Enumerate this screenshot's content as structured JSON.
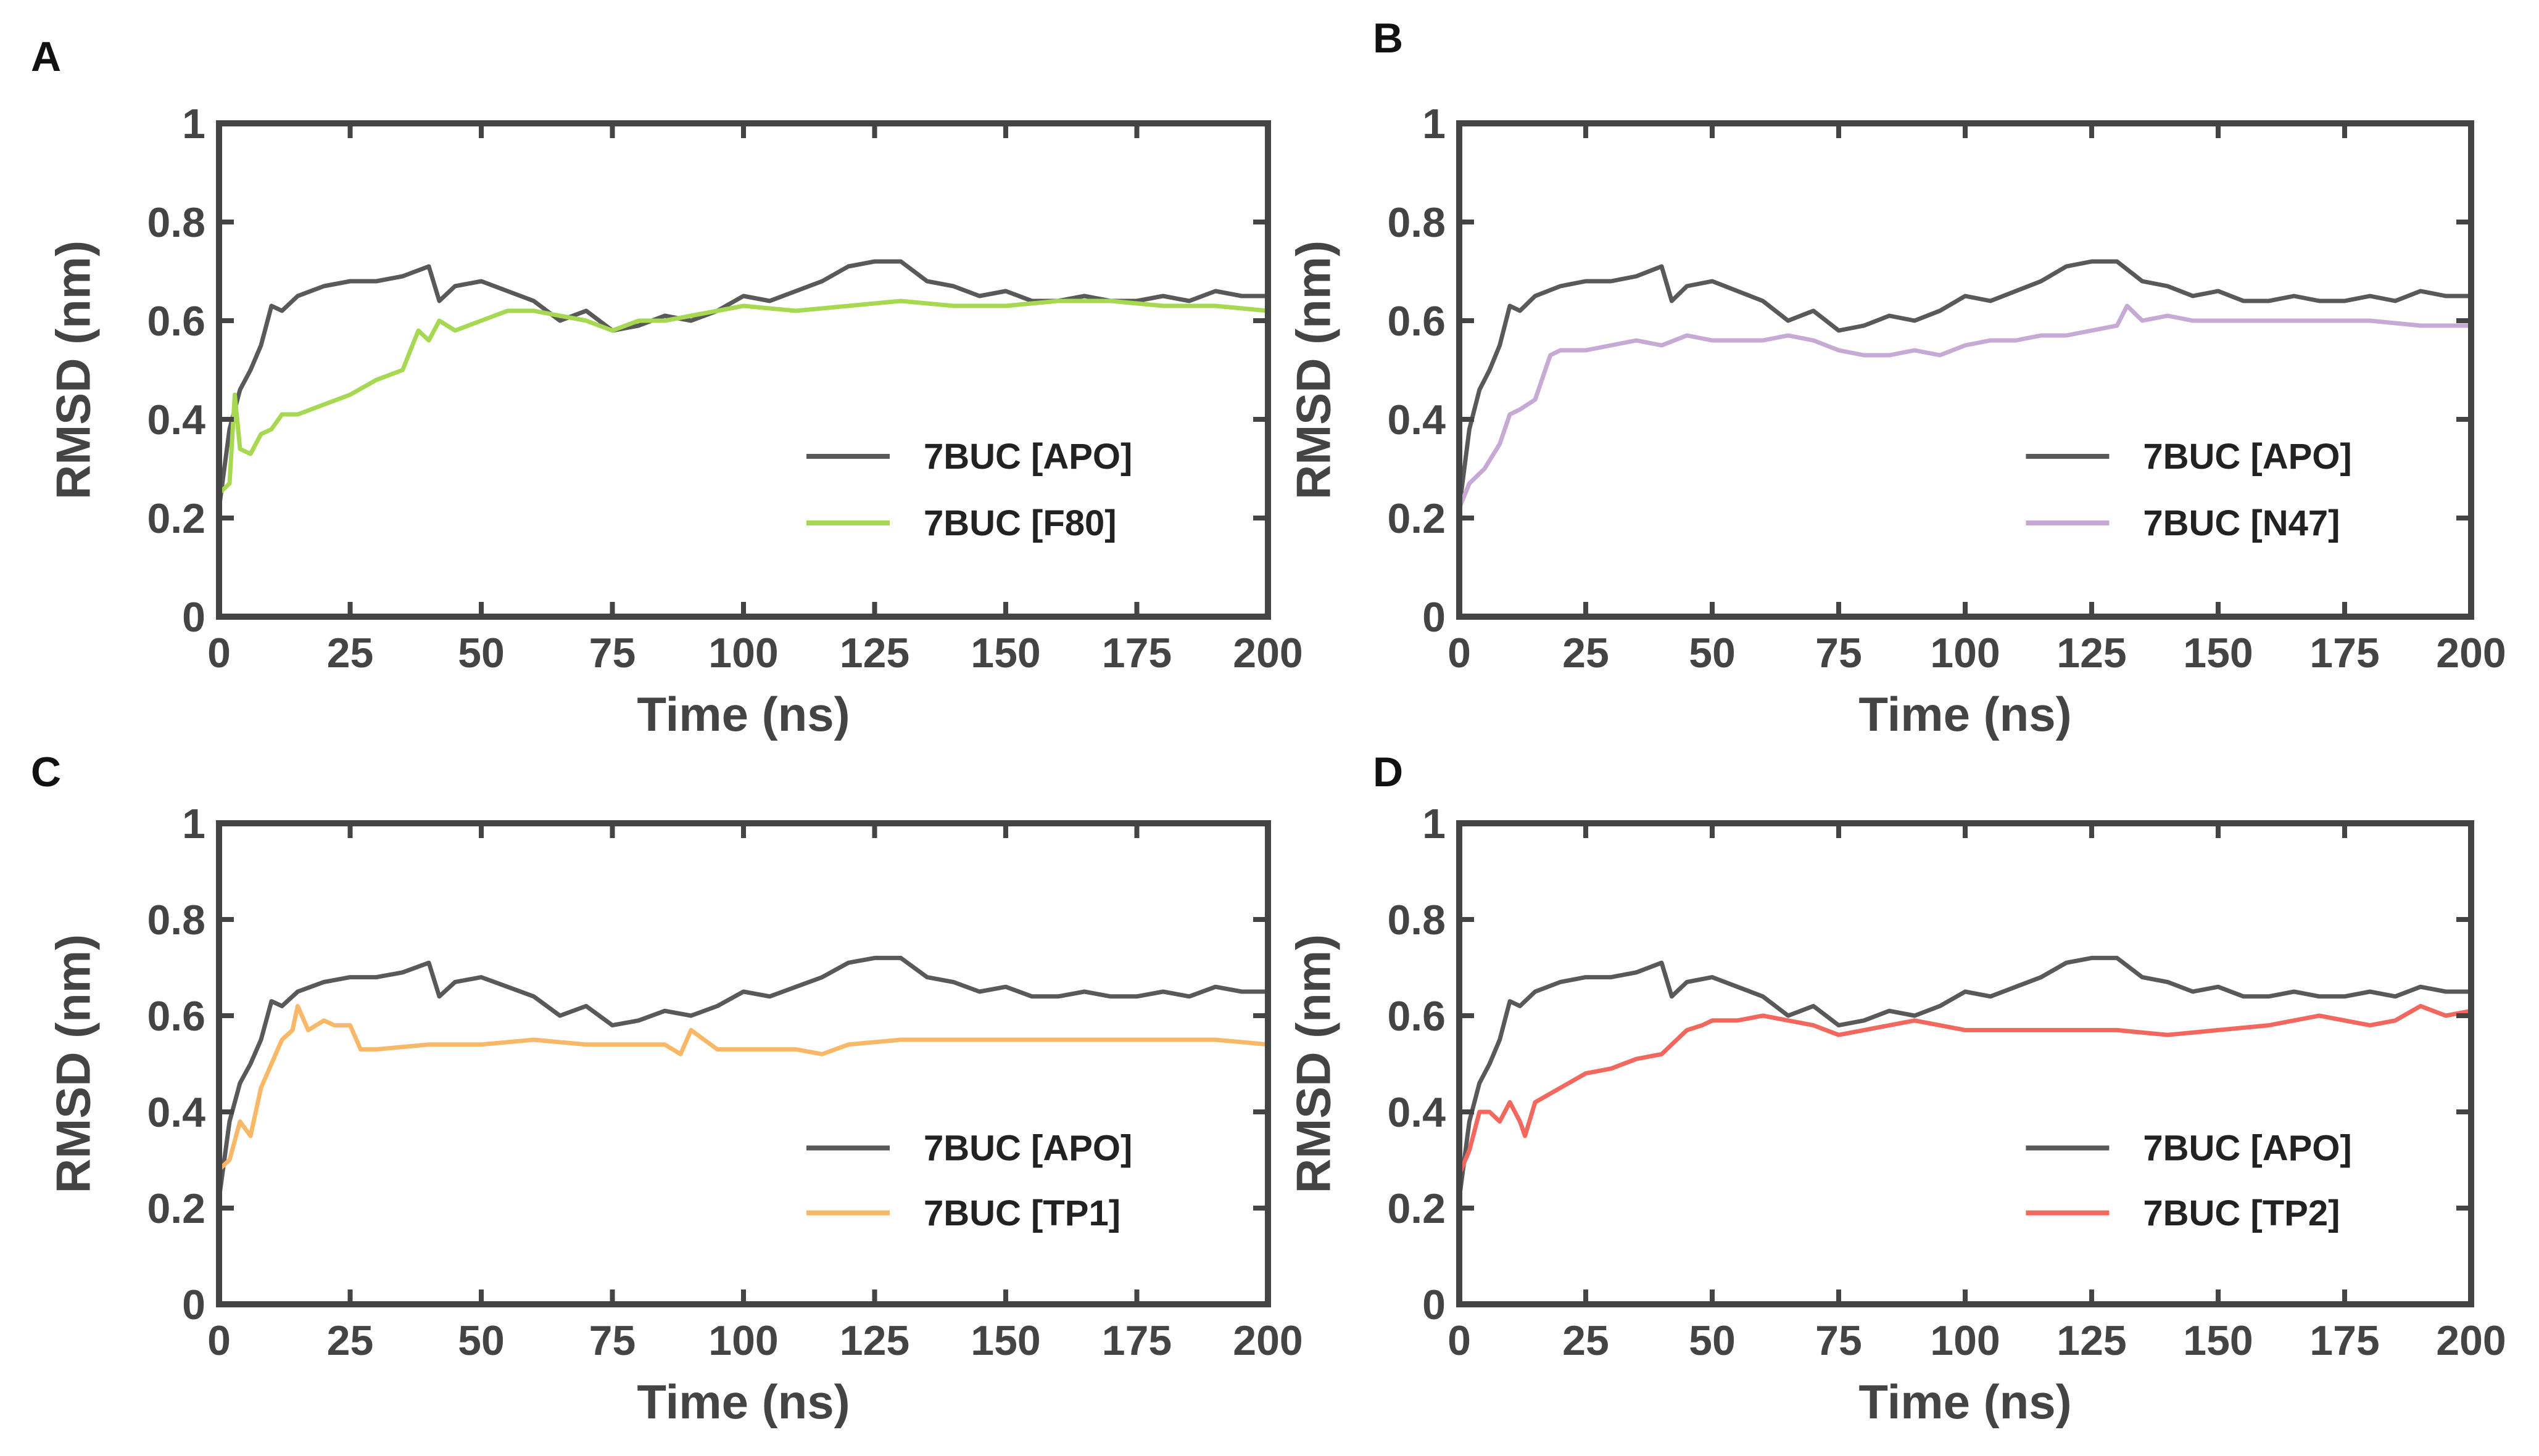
{
  "chart_data": [
    {
      "panel": "A",
      "type": "line",
      "title": "",
      "xlabel": "Time (ns)",
      "ylabel": "RMSD (nm)",
      "xlim": [
        0,
        200
      ],
      "ylim": [
        0,
        1
      ],
      "xticks": [
        0,
        25,
        50,
        75,
        100,
        125,
        150,
        175,
        200
      ],
      "yticks": [
        0,
        0.2,
        0.4,
        0.6,
        0.8,
        1
      ],
      "ytick_labels": [
        "0",
        "0.2",
        "0.4",
        "0.6",
        "0.8",
        "1"
      ],
      "legend_position": "bottom-right",
      "series": [
        {
          "name": "7BUC [APO]",
          "color": "#595959",
          "x": [
            0,
            2,
            4,
            6,
            8,
            10,
            12,
            15,
            20,
            25,
            30,
            35,
            40,
            42,
            45,
            50,
            55,
            60,
            65,
            70,
            75,
            80,
            85,
            90,
            95,
            100,
            105,
            110,
            115,
            120,
            125,
            130,
            135,
            140,
            145,
            150,
            155,
            160,
            165,
            170,
            175,
            180,
            185,
            190,
            195,
            200
          ],
          "y": [
            0.22,
            0.38,
            0.46,
            0.5,
            0.55,
            0.63,
            0.62,
            0.65,
            0.67,
            0.68,
            0.68,
            0.69,
            0.71,
            0.64,
            0.67,
            0.68,
            0.66,
            0.64,
            0.6,
            0.62,
            0.58,
            0.59,
            0.61,
            0.6,
            0.62,
            0.65,
            0.64,
            0.66,
            0.68,
            0.71,
            0.72,
            0.72,
            0.68,
            0.67,
            0.65,
            0.66,
            0.64,
            0.64,
            0.65,
            0.64,
            0.64,
            0.65,
            0.64,
            0.66,
            0.65,
            0.65
          ]
        },
        {
          "name": "7BUC [F80]",
          "color": "#a6d852",
          "x": [
            0,
            2,
            3,
            4,
            6,
            8,
            10,
            12,
            15,
            20,
            25,
            30,
            35,
            38,
            40,
            42,
            45,
            50,
            55,
            60,
            65,
            70,
            75,
            80,
            85,
            90,
            95,
            100,
            110,
            120,
            130,
            140,
            150,
            160,
            170,
            180,
            190,
            200
          ],
          "y": [
            0.25,
            0.27,
            0.45,
            0.34,
            0.33,
            0.37,
            0.38,
            0.41,
            0.41,
            0.43,
            0.45,
            0.48,
            0.5,
            0.58,
            0.56,
            0.6,
            0.58,
            0.6,
            0.62,
            0.62,
            0.61,
            0.6,
            0.58,
            0.6,
            0.6,
            0.61,
            0.62,
            0.63,
            0.62,
            0.63,
            0.64,
            0.63,
            0.63,
            0.64,
            0.64,
            0.63,
            0.63,
            0.62
          ]
        }
      ]
    },
    {
      "panel": "B",
      "type": "line",
      "title": "",
      "xlabel": "Time (ns)",
      "ylabel": "RMSD (nm)",
      "xlim": [
        0,
        200
      ],
      "ylim": [
        0,
        1
      ],
      "xticks": [
        0,
        25,
        50,
        75,
        100,
        125,
        150,
        175,
        200
      ],
      "yticks": [
        0,
        0.2,
        0.4,
        0.6,
        0.8,
        1
      ],
      "ytick_labels": [
        "0",
        "0.2",
        "0.4",
        "0.6",
        "0.8",
        "1"
      ],
      "legend_position": "bottom-right",
      "series": [
        {
          "name": "7BUC [APO]",
          "color": "#595959",
          "x": [
            0,
            2,
            4,
            6,
            8,
            10,
            12,
            15,
            20,
            25,
            30,
            35,
            40,
            42,
            45,
            50,
            55,
            60,
            65,
            70,
            75,
            80,
            85,
            90,
            95,
            100,
            105,
            110,
            115,
            120,
            125,
            130,
            135,
            140,
            145,
            150,
            155,
            160,
            165,
            170,
            175,
            180,
            185,
            190,
            195,
            200
          ],
          "y": [
            0.22,
            0.38,
            0.46,
            0.5,
            0.55,
            0.63,
            0.62,
            0.65,
            0.67,
            0.68,
            0.68,
            0.69,
            0.71,
            0.64,
            0.67,
            0.68,
            0.66,
            0.64,
            0.6,
            0.62,
            0.58,
            0.59,
            0.61,
            0.6,
            0.62,
            0.65,
            0.64,
            0.66,
            0.68,
            0.71,
            0.72,
            0.72,
            0.68,
            0.67,
            0.65,
            0.66,
            0.64,
            0.64,
            0.65,
            0.64,
            0.64,
            0.65,
            0.64,
            0.66,
            0.65,
            0.65
          ]
        },
        {
          "name": "7BUC [N47]",
          "color": "#c7a9d6",
          "x": [
            0,
            2,
            5,
            8,
            10,
            12,
            15,
            18,
            20,
            25,
            30,
            35,
            40,
            45,
            50,
            55,
            60,
            65,
            70,
            75,
            80,
            85,
            90,
            95,
            100,
            105,
            110,
            115,
            120,
            125,
            130,
            132,
            135,
            140,
            145,
            150,
            160,
            170,
            180,
            190,
            200
          ],
          "y": [
            0.22,
            0.27,
            0.3,
            0.35,
            0.41,
            0.42,
            0.44,
            0.53,
            0.54,
            0.54,
            0.55,
            0.56,
            0.55,
            0.57,
            0.56,
            0.56,
            0.56,
            0.57,
            0.56,
            0.54,
            0.53,
            0.53,
            0.54,
            0.53,
            0.55,
            0.56,
            0.56,
            0.57,
            0.57,
            0.58,
            0.59,
            0.63,
            0.6,
            0.61,
            0.6,
            0.6,
            0.6,
            0.6,
            0.6,
            0.59,
            0.59
          ]
        }
      ]
    },
    {
      "panel": "C",
      "type": "line",
      "title": "",
      "xlabel": "Time (ns)",
      "ylabel": "RMSD (nm)",
      "xlim": [
        0,
        200
      ],
      "ylim": [
        0,
        1
      ],
      "xticks": [
        0,
        25,
        50,
        75,
        100,
        125,
        150,
        175,
        200
      ],
      "yticks": [
        0,
        0.2,
        0.4,
        0.6,
        0.8,
        1
      ],
      "ytick_labels": [
        "0",
        "0.2",
        "0.4",
        "0.6",
        "0.8",
        "1"
      ],
      "legend_position": "bottom-right",
      "series": [
        {
          "name": "7BUC [APO]",
          "color": "#595959",
          "x": [
            0,
            2,
            4,
            6,
            8,
            10,
            12,
            15,
            20,
            25,
            30,
            35,
            40,
            42,
            45,
            50,
            55,
            60,
            65,
            70,
            75,
            80,
            85,
            90,
            95,
            100,
            105,
            110,
            115,
            120,
            125,
            130,
            135,
            140,
            145,
            150,
            155,
            160,
            165,
            170,
            175,
            180,
            185,
            190,
            195,
            200
          ],
          "y": [
            0.22,
            0.38,
            0.46,
            0.5,
            0.55,
            0.63,
            0.62,
            0.65,
            0.67,
            0.68,
            0.68,
            0.69,
            0.71,
            0.64,
            0.67,
            0.68,
            0.66,
            0.64,
            0.6,
            0.62,
            0.58,
            0.59,
            0.61,
            0.6,
            0.62,
            0.65,
            0.64,
            0.66,
            0.68,
            0.71,
            0.72,
            0.72,
            0.68,
            0.67,
            0.65,
            0.66,
            0.64,
            0.64,
            0.65,
            0.64,
            0.64,
            0.65,
            0.64,
            0.66,
            0.65,
            0.65
          ]
        },
        {
          "name": "7BUC [TP1]",
          "color": "#f8b868",
          "x": [
            0,
            2,
            4,
            6,
            8,
            10,
            12,
            14,
            15,
            17,
            20,
            22,
            25,
            27,
            30,
            40,
            50,
            60,
            70,
            80,
            85,
            88,
            90,
            95,
            100,
            110,
            115,
            120,
            130,
            140,
            150,
            160,
            170,
            180,
            190,
            200
          ],
          "y": [
            0.28,
            0.3,
            0.38,
            0.35,
            0.45,
            0.5,
            0.55,
            0.57,
            0.62,
            0.57,
            0.59,
            0.58,
            0.58,
            0.53,
            0.53,
            0.54,
            0.54,
            0.55,
            0.54,
            0.54,
            0.54,
            0.52,
            0.57,
            0.53,
            0.53,
            0.53,
            0.52,
            0.54,
            0.55,
            0.55,
            0.55,
            0.55,
            0.55,
            0.55,
            0.55,
            0.54
          ]
        }
      ]
    },
    {
      "panel": "D",
      "type": "line",
      "title": "",
      "xlabel": "Time (ns)",
      "ylabel": "RMSD (nm)",
      "xlim": [
        0,
        200
      ],
      "ylim": [
        0,
        1
      ],
      "xticks": [
        0,
        25,
        50,
        75,
        100,
        125,
        150,
        175,
        200
      ],
      "yticks": [
        0,
        0.2,
        0.4,
        0.6,
        0.8,
        1
      ],
      "ytick_labels": [
        "0",
        "0.2",
        "0.4",
        "0.6",
        "0.8",
        "1"
      ],
      "legend_position": "bottom-right",
      "series": [
        {
          "name": "7BUC [APO]",
          "color": "#595959",
          "x": [
            0,
            2,
            4,
            6,
            8,
            10,
            12,
            15,
            20,
            25,
            30,
            35,
            40,
            42,
            45,
            50,
            55,
            60,
            65,
            70,
            75,
            80,
            85,
            90,
            95,
            100,
            105,
            110,
            115,
            120,
            125,
            130,
            135,
            140,
            145,
            150,
            155,
            160,
            165,
            170,
            175,
            180,
            185,
            190,
            195,
            200
          ],
          "y": [
            0.22,
            0.38,
            0.46,
            0.5,
            0.55,
            0.63,
            0.62,
            0.65,
            0.67,
            0.68,
            0.68,
            0.69,
            0.71,
            0.64,
            0.67,
            0.68,
            0.66,
            0.64,
            0.6,
            0.62,
            0.58,
            0.59,
            0.61,
            0.6,
            0.62,
            0.65,
            0.64,
            0.66,
            0.68,
            0.71,
            0.72,
            0.72,
            0.68,
            0.67,
            0.65,
            0.66,
            0.64,
            0.64,
            0.65,
            0.64,
            0.64,
            0.65,
            0.64,
            0.66,
            0.65,
            0.65
          ]
        },
        {
          "name": "7BUC [TP2]",
          "color": "#f2685e",
          "x": [
            0,
            2,
            4,
            6,
            8,
            10,
            12,
            13,
            15,
            20,
            25,
            30,
            35,
            40,
            45,
            48,
            50,
            55,
            60,
            70,
            75,
            80,
            90,
            100,
            110,
            120,
            130,
            140,
            150,
            160,
            170,
            180,
            185,
            190,
            195,
            200
          ],
          "y": [
            0.27,
            0.32,
            0.4,
            0.4,
            0.38,
            0.42,
            0.38,
            0.35,
            0.42,
            0.45,
            0.48,
            0.49,
            0.51,
            0.52,
            0.57,
            0.58,
            0.59,
            0.59,
            0.6,
            0.58,
            0.56,
            0.57,
            0.59,
            0.57,
            0.57,
            0.57,
            0.57,
            0.56,
            0.57,
            0.58,
            0.6,
            0.58,
            0.59,
            0.62,
            0.6,
            0.61
          ]
        }
      ]
    }
  ]
}
